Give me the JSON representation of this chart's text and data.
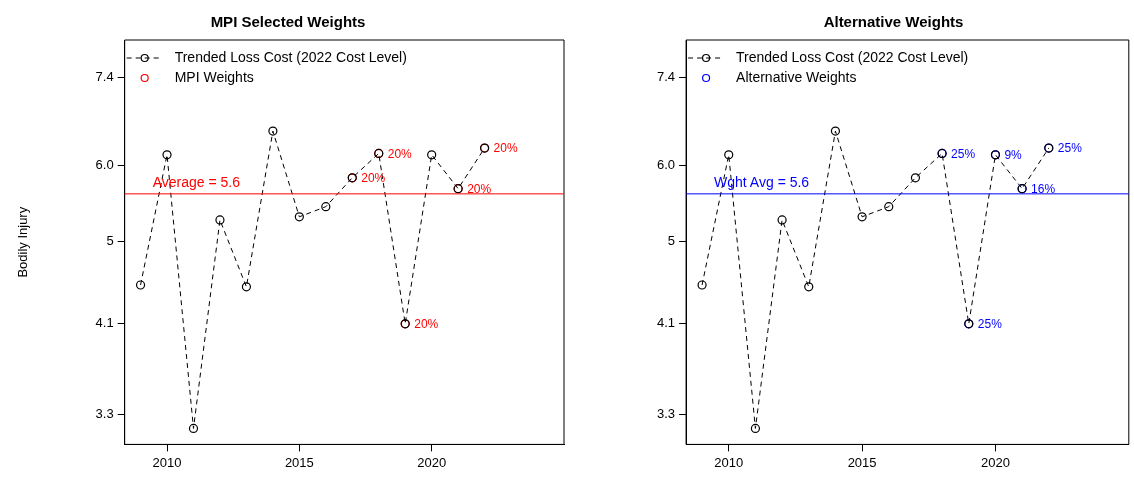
{
  "chart_data": [
    {
      "type": "line",
      "title": "MPI Selected Weights",
      "ylabel": "Bodily Injury",
      "log": "y",
      "grid": false,
      "legend": "top left",
      "xlim": [
        2008.4,
        2025
      ],
      "xticks": [
        2010,
        2015,
        2020
      ],
      "ylim": [
        3.07,
        8.1
      ],
      "yticks": [
        {
          "value": 3.3,
          "label": "3.3"
        },
        {
          "value": 4.1,
          "label": "4.1"
        },
        5,
        {
          "value": 6,
          "label": "6.0"
        },
        {
          "value": 7.4,
          "label": "7.4"
        }
      ],
      "series": [
        {
          "name": "Trended Loss Cost (2022 Cost Level)",
          "type": "line",
          "color": "#000000",
          "marker": "circle",
          "line_style": "dashed",
          "x": [
            2009,
            2010,
            2011,
            2012,
            2013,
            2014,
            2015,
            2016,
            2017,
            2018,
            2019,
            2020,
            2021,
            2022
          ],
          "values": [
            4.5,
            6.15,
            3.19,
            5.26,
            4.48,
            6.51,
            5.3,
            5.43,
            5.82,
            6.17,
            4.1,
            6.15,
            5.67,
            6.25
          ]
        },
        {
          "name": "MPI Weights",
          "type": "scatter",
          "color": "#ff0000",
          "marker": "circle",
          "x": [
            2017,
            2018,
            2019,
            2021,
            2022
          ],
          "values": [
            5.82,
            6.17,
            4.1,
            5.67,
            6.25
          ]
        }
      ],
      "annotations": [
        {
          "text": "20%",
          "x": 2017,
          "y": 5.82
        },
        {
          "text": "20%",
          "x": 2018,
          "y": 6.17
        },
        {
          "text": "20%",
          "x": 2019,
          "y": 4.1
        },
        {
          "text": "20%",
          "x": 2021,
          "y": 5.67
        },
        {
          "text": "20%",
          "x": 2022,
          "y": 6.25
        }
      ],
      "ref_lines": [
        {
          "axis": "y",
          "value": 5.6,
          "label": "Average = 5.6",
          "color": "#ff0000"
        }
      ]
    },
    {
      "type": "line",
      "title": "Alternative Weights",
      "log": "y",
      "grid": false,
      "legend": "top left",
      "xlim": [
        2008.4,
        2025
      ],
      "xticks": [
        2010,
        2015,
        2020
      ],
      "ylim": [
        3.07,
        8.1
      ],
      "yticks": [
        {
          "value": 3.3,
          "label": "3.3"
        },
        {
          "value": 4.1,
          "label": "4.1"
        },
        5,
        {
          "value": 6,
          "label": "6.0"
        },
        {
          "value": 7.4,
          "label": "7.4"
        }
      ],
      "series": [
        {
          "name": "Trended Loss Cost (2022 Cost Level)",
          "type": "line",
          "color": "#000000",
          "marker": "circle",
          "line_style": "dashed",
          "x": [
            2009,
            2010,
            2011,
            2012,
            2013,
            2014,
            2015,
            2016,
            2017,
            2018,
            2019,
            2020,
            2021,
            2022
          ],
          "values": [
            4.5,
            6.15,
            3.19,
            5.26,
            4.48,
            6.51,
            5.3,
            5.43,
            5.82,
            6.17,
            4.1,
            6.15,
            5.67,
            6.25
          ]
        },
        {
          "name": "Alternative Weights",
          "type": "scatter",
          "color": "#0000ff",
          "marker": "circle",
          "x": [
            2018,
            2019,
            2020,
            2021,
            2022
          ],
          "values": [
            6.17,
            4.1,
            6.15,
            5.67,
            6.25
          ]
        }
      ],
      "annotations": [
        {
          "text": "25%",
          "x": 2018,
          "y": 6.17
        },
        {
          "text": "25%",
          "x": 2019,
          "y": 4.1
        },
        {
          "text": "9%",
          "x": 2020,
          "y": 6.15
        },
        {
          "text": "16%",
          "x": 2021,
          "y": 5.67
        },
        {
          "text": "25%",
          "x": 2022,
          "y": 6.25
        }
      ],
      "ref_lines": [
        {
          "axis": "y",
          "value": 5.6,
          "label": "Wght Avg = 5.6",
          "color": "#0000ff"
        }
      ]
    }
  ]
}
